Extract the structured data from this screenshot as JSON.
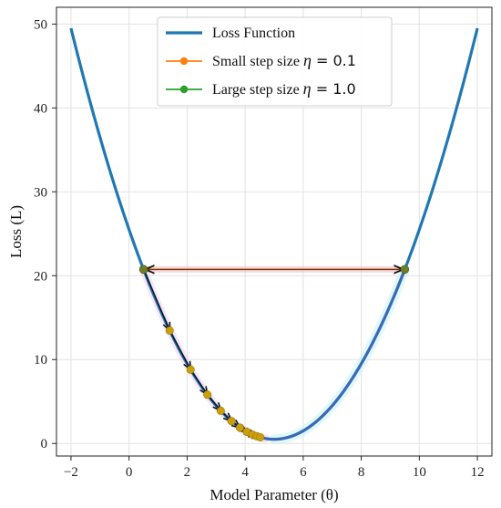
{
  "chart_data": {
    "type": "line",
    "title": "",
    "xlabel": "Model Parameter (θ)",
    "ylabel": "Loss (L)",
    "xlim": [
      -2.5,
      12.5
    ],
    "ylim": [
      -1.5,
      52
    ],
    "xticks": [
      -2,
      0,
      2,
      4,
      6,
      8,
      10,
      12
    ],
    "xtick_labels": [
      "−2",
      "0",
      "2",
      "4",
      "6",
      "8",
      "10",
      "12"
    ],
    "yticks": [
      0,
      10,
      20,
      30,
      40,
      50
    ],
    "ytick_labels": [
      "0",
      "10",
      "20",
      "30",
      "40",
      "50"
    ],
    "grid": true,
    "legend_position": "top-center",
    "series": [
      {
        "name": "Loss Function",
        "kind": "curve",
        "function": "(θ − 5)^2 + 0.5",
        "x": [
          -2,
          -1,
          0,
          1,
          2,
          3,
          4,
          5,
          6,
          7,
          8,
          9,
          10,
          11,
          12
        ],
        "y": [
          49.5,
          36.5,
          25.5,
          16.5,
          9.5,
          4.5,
          1.5,
          0.5,
          1.5,
          4.5,
          9.5,
          16.5,
          25.5,
          36.5,
          49.5
        ],
        "color": "#1f77b4"
      },
      {
        "name": "Small step size η = 0.1",
        "kind": "steps",
        "x": [
          0.5,
          1.4,
          2.12,
          2.7,
          3.16,
          3.53,
          3.82,
          4.06,
          4.25,
          4.4,
          4.52
        ],
        "y": [
          20.75,
          13.46,
          8.8,
          5.81,
          3.89,
          2.66,
          1.88,
          1.38,
          1.06,
          0.86,
          0.73
        ],
        "color": "#ff7f0e"
      },
      {
        "name": "Large step size η = 1.0",
        "kind": "steps",
        "x": [
          0.5,
          9.5,
          0.5
        ],
        "y": [
          20.75,
          20.75,
          20.75
        ],
        "color": "#2ca02c"
      }
    ],
    "legend": {
      "items": [
        {
          "label": "Loss Function",
          "prefix": "Loss Function",
          "eta": "",
          "value": "",
          "color": "#1f77b4",
          "marker": false
        },
        {
          "label": "Small step size η = 0.1",
          "prefix": "Small step size ",
          "eta": "η",
          "value": " = 0.1",
          "color": "#ff7f0e",
          "marker": true
        },
        {
          "label": "Large step size η = 1.0",
          "prefix": "Large step size ",
          "eta": "η",
          "value": " = 1.0",
          "color": "#2ca02c",
          "marker": true
        }
      ]
    }
  }
}
